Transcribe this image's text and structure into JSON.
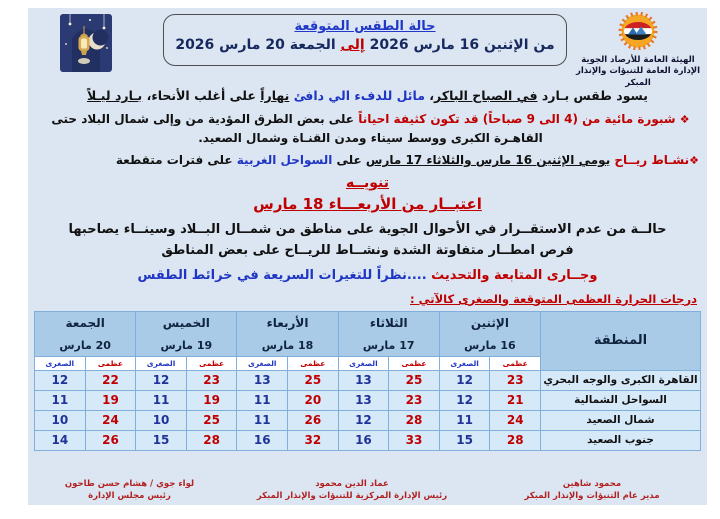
{
  "header": {
    "org_line1": "الهيئة العامة للأرصاد الجوية",
    "org_line2": "الإدارة العامة للتنبؤات والإنذار المبكر",
    "title_line1": "حالة الطقس المتوقعة",
    "title_line2": [
      {
        "t": "من الإثنين 16 مارس 2026 ",
        "c": ""
      },
      {
        "t": "إلى",
        "c": "ru"
      },
      {
        "t": " الجمعة 20 مارس 2026",
        "c": ""
      }
    ]
  },
  "body_text": {
    "bullet": "❖",
    "p1": [
      {
        "t": "يسود طقس بـارد ",
        "c": "k"
      },
      {
        "t": "في الصباح الباكر",
        "c": "k u"
      },
      {
        "t": "، ",
        "c": "k"
      },
      {
        "t": "مائل للدفء الي دافئ",
        "c": "b"
      },
      {
        "t": " ",
        "c": "k"
      },
      {
        "t": "نهاراً",
        "c": "k u"
      },
      {
        "t": " على أغلب الأنحاء، ",
        "c": "k"
      },
      {
        "t": "بـارد ليـلاً",
        "c": "k u"
      }
    ],
    "p2": [
      {
        "t": "شبورة مائية من (4 الى 9 صباحاً) قد تكون كثيفة احياناً",
        "c": "r"
      },
      {
        "t": " على بعض الطرق المؤدية من وإلى شمال البلاد حتى القاهـرة الكبرى ووسط سيناء ومدن القنـاة وشمال الصعيد.",
        "c": "k"
      }
    ],
    "p3": [
      {
        "t": "نشـاط ريــاح ",
        "c": "r"
      },
      {
        "t": "يومي الإثنين 16 مارس والثلاثاء 17 مارس",
        "c": "k u"
      },
      {
        "t": " على ",
        "c": "k"
      },
      {
        "t": "السواحل الغربية",
        "c": "b"
      },
      {
        "t": " على فترات متقطعة",
        "c": "k"
      }
    ],
    "notice1": [
      {
        "t": "تنويــه",
        "c": "ru"
      }
    ],
    "notice2": [
      {
        "t": "اعتبــار من الأربعـــاء 18 مارس",
        "c": "ru"
      }
    ],
    "p4": [
      {
        "t": "حالــة من عدم الاستقــرار في الأحوال الجوية على مناطق من شمــال البــلاد وسينــاء يصاحبها فرص امطــار متفاوتة الشدة ونشــاط للريــاح على بعض المناطق",
        "c": "k"
      }
    ],
    "p5": [
      {
        "t": "وجــارى المتابعة والتحديث ",
        "c": "r"
      },
      {
        "t": "....نظراً للتغيرات السريعة في خرائط الطقس",
        "c": "b"
      }
    ],
    "table_caption": "درجات الحرارة العظمى المتوقعة والصغرى كالآتي :"
  },
  "table": {
    "region_header": "المنطقة",
    "max_label": "عظمى",
    "min_label": "الصغرى",
    "days": [
      {
        "name": "الإثنين",
        "date": "16 مارس"
      },
      {
        "name": "الثلاثاء",
        "date": "17 مارس"
      },
      {
        "name": "الأربعاء",
        "date": "18 مارس"
      },
      {
        "name": "الخميس",
        "date": "19 مارس"
      },
      {
        "name": "الجمعة",
        "date": "20 مارس"
      }
    ],
    "rows": [
      {
        "region": "القاهرة الكبرى والوجه البحري",
        "temps": [
          [
            23,
            12
          ],
          [
            25,
            13
          ],
          [
            25,
            13
          ],
          [
            23,
            12
          ],
          [
            22,
            12
          ]
        ]
      },
      {
        "region": "السواحل الشمالية",
        "temps": [
          [
            21,
            12
          ],
          [
            23,
            13
          ],
          [
            20,
            11
          ],
          [
            19,
            11
          ],
          [
            19,
            11
          ]
        ]
      },
      {
        "region": "شمال الصعيد",
        "temps": [
          [
            24,
            11
          ],
          [
            28,
            12
          ],
          [
            26,
            11
          ],
          [
            25,
            10
          ],
          [
            24,
            10
          ]
        ]
      },
      {
        "region": "جنوب الصعيد",
        "temps": [
          [
            28,
            15
          ],
          [
            33,
            16
          ],
          [
            32,
            16
          ],
          [
            28,
            15
          ],
          [
            26,
            14
          ]
        ]
      }
    ]
  },
  "footer": {
    "signatures": [
      {
        "name": "محمود شاهين",
        "title": "مدير عام التنبؤات والإنذار المبكر"
      },
      {
        "name": "عماد الدين محمود",
        "title": "رئيس الإدارة المركزية للتنبؤات والإنذار المبكر"
      },
      {
        "name": "لواء جوي / هشام حسن طاحون",
        "title": "رئيس مجلس الإدارة"
      }
    ]
  },
  "colors": {
    "content_bg": "#dbe6f2",
    "header_cell_bg": "#a9cbe8",
    "data_cell_bg": "#d6e9f8",
    "max_red": "#c00000",
    "min_blue": "#1f3399",
    "accent_blue": "#1f35c4",
    "footer_red": "#b22222"
  }
}
